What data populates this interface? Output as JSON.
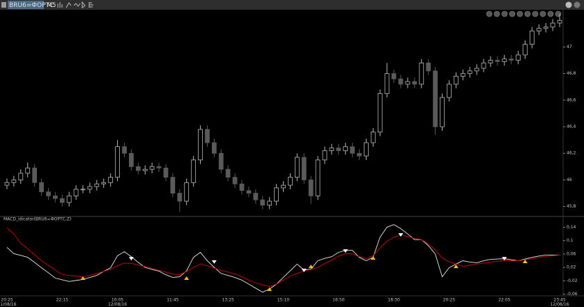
{
  "toolbar": {
    "symbol": "BRU6=ФОРТС",
    "timeframe": "M5"
  },
  "chart_data": [
    {
      "type": "candlestick",
      "up_color": "#b8b8b8",
      "down_color": "#5a5a5a",
      "categories": [
        "20:25",
        null,
        null,
        null,
        null,
        null,
        null,
        null,
        "22:15",
        null,
        null,
        null,
        null,
        null,
        null,
        null,
        "10:05",
        null,
        null,
        null,
        null,
        null,
        null,
        null,
        "11:45",
        null,
        null,
        null,
        null,
        null,
        null,
        null,
        "13:25",
        null,
        null,
        null,
        null,
        null,
        null,
        null,
        "15:10",
        null,
        null,
        null,
        null,
        null,
        null,
        null,
        "16:50",
        null,
        null,
        null,
        null,
        null,
        null,
        null,
        "18:30",
        null,
        null,
        null,
        null,
        null,
        null,
        null,
        "20:25",
        null,
        null,
        null,
        null,
        null,
        null,
        null,
        "22:05",
        null,
        null,
        null,
        null,
        null,
        null,
        null,
        "23:45"
      ],
      "dates": [
        "11/08/16",
        null,
        null,
        null,
        null,
        null,
        null,
        null,
        null,
        null,
        null,
        null,
        null,
        null,
        null,
        null,
        "12/08/16",
        null,
        null,
        null,
        null,
        null,
        null,
        null,
        null,
        null,
        null,
        null,
        null,
        null,
        null,
        null,
        null,
        null,
        null,
        null,
        null,
        null,
        null,
        null,
        null,
        null,
        null,
        null,
        null,
        null,
        null,
        null,
        null,
        null,
        null,
        null,
        null,
        null,
        null,
        null,
        null,
        null,
        null,
        null,
        null,
        null,
        null,
        null,
        null,
        null,
        null,
        null,
        null,
        null,
        null,
        null,
        null,
        null,
        null,
        null,
        null,
        null,
        null,
        null,
        "12/08/16"
      ],
      "open": [
        45.96,
        45.98,
        46.0,
        46.05,
        46.09,
        45.98,
        45.91,
        45.88,
        45.86,
        45.83,
        45.88,
        45.93,
        45.93,
        45.95,
        45.97,
        45.98,
        46.02,
        46.25,
        46.2,
        46.1,
        46.07,
        46.08,
        46.1,
        46.09,
        46.02,
        45.9,
        45.84,
        45.98,
        46.15,
        46.38,
        46.28,
        46.2,
        46.08,
        46.02,
        45.97,
        45.92,
        45.9,
        45.85,
        45.81,
        45.84,
        45.94,
        45.96,
        46.02,
        46.17,
        46.0,
        45.88,
        46.15,
        46.22,
        46.24,
        46.22,
        46.25,
        46.2,
        46.18,
        46.28,
        46.36,
        46.65,
        46.8,
        46.76,
        46.72,
        46.74,
        46.72,
        46.88,
        46.82,
        46.4,
        46.62,
        46.72,
        46.78,
        46.8,
        46.82,
        46.84,
        46.88,
        46.9,
        46.89,
        46.91,
        46.9,
        46.94,
        47.02,
        47.12,
        47.14,
        47.15,
        47.18
      ],
      "high": [
        46.01,
        46.03,
        46.08,
        46.13,
        46.12,
        46.01,
        45.94,
        45.91,
        45.89,
        45.91,
        45.96,
        45.96,
        45.98,
        46.0,
        46.01,
        46.05,
        46.3,
        46.28,
        46.23,
        46.13,
        46.11,
        46.13,
        46.13,
        46.12,
        46.05,
        45.93,
        46.01,
        46.18,
        46.41,
        46.41,
        46.31,
        46.23,
        46.11,
        46.05,
        46.0,
        45.95,
        45.93,
        45.88,
        45.87,
        45.97,
        45.99,
        46.05,
        46.2,
        46.2,
        46.03,
        46.18,
        46.25,
        46.27,
        46.27,
        46.28,
        46.28,
        46.23,
        46.31,
        46.39,
        46.68,
        46.88,
        46.83,
        46.79,
        46.77,
        46.77,
        46.91,
        46.91,
        46.85,
        46.65,
        46.75,
        46.81,
        46.83,
        46.85,
        46.87,
        46.91,
        46.93,
        46.93,
        46.94,
        46.94,
        46.97,
        47.05,
        47.15,
        47.17,
        47.18,
        47.21,
        47.25
      ],
      "low": [
        45.93,
        45.95,
        45.97,
        46.02,
        45.95,
        45.88,
        45.85,
        45.83,
        45.8,
        45.8,
        45.85,
        45.9,
        45.9,
        45.92,
        45.94,
        45.95,
        45.99,
        46.17,
        46.07,
        46.04,
        46.04,
        46.05,
        46.06,
        45.99,
        45.87,
        45.76,
        45.81,
        45.95,
        46.12,
        46.25,
        46.17,
        46.05,
        45.99,
        45.94,
        45.89,
        45.87,
        45.82,
        45.78,
        45.78,
        45.81,
        45.91,
        45.93,
        45.99,
        45.97,
        45.82,
        45.85,
        46.12,
        46.19,
        46.19,
        46.19,
        46.17,
        46.15,
        46.15,
        46.25,
        46.33,
        46.62,
        46.73,
        46.69,
        46.69,
        46.69,
        46.69,
        46.79,
        46.34,
        46.37,
        46.59,
        46.69,
        46.75,
        46.77,
        46.79,
        46.81,
        46.85,
        46.86,
        46.86,
        46.87,
        46.87,
        46.91,
        46.99,
        47.09,
        47.11,
        47.12,
        47.15
      ],
      "close": [
        45.98,
        46.0,
        46.05,
        46.09,
        45.98,
        45.91,
        45.88,
        45.86,
        45.83,
        45.88,
        45.93,
        45.93,
        45.95,
        45.97,
        45.98,
        46.02,
        46.25,
        46.2,
        46.1,
        46.07,
        46.08,
        46.1,
        46.09,
        46.02,
        45.9,
        45.84,
        45.98,
        46.15,
        46.38,
        46.28,
        46.2,
        46.08,
        46.02,
        45.97,
        45.92,
        45.9,
        45.85,
        45.81,
        45.84,
        45.94,
        45.96,
        46.02,
        46.17,
        46.0,
        45.88,
        46.15,
        46.22,
        46.24,
        46.22,
        46.25,
        46.2,
        46.18,
        46.28,
        46.36,
        46.65,
        46.8,
        46.76,
        46.72,
        46.74,
        46.72,
        46.88,
        46.82,
        46.4,
        46.62,
        46.72,
        46.78,
        46.8,
        46.82,
        46.84,
        46.88,
        46.9,
        46.89,
        46.91,
        46.9,
        46.94,
        47.02,
        47.12,
        47.14,
        47.15,
        47.18,
        47.2
      ],
      "ylim": [
        45.73,
        47.28
      ],
      "yticks": [
        {
          "value": 45.8,
          "label": "45,8"
        },
        46,
        {
          "value": 46.2,
          "label": "46,2"
        },
        {
          "value": 46.4,
          "label": "46,4"
        },
        {
          "value": 46.6,
          "label": "46,6"
        },
        {
          "value": 46.8,
          "label": "46,8"
        },
        47
      ]
    },
    {
      "type": "line",
      "title": "MACD_idicator(BRU6=ФОРТС,Z)",
      "series": [
        {
          "color": "#e8e8e8",
          "values": [
            0.08,
            0.061,
            0.056,
            0.05,
            0.035,
            0.019,
            0.004,
            -0.012,
            -0.017,
            -0.022,
            -0.019,
            -0.016,
            -0.01,
            -0.004,
            0.008,
            0.019,
            0.055,
            0.067,
            0.052,
            0.035,
            0.02,
            0.014,
            0.009,
            -0.002,
            -0.01,
            -0.008,
            0.01,
            0.05,
            0.065,
            0.04,
            0.02,
            0.002,
            -0.004,
            -0.01,
            -0.018,
            -0.03,
            -0.042,
            -0.054,
            -0.045,
            -0.03,
            -0.01,
            0.01,
            0.03,
            0.012,
            0.015,
            0.04,
            0.047,
            0.052,
            0.065,
            0.071,
            0.071,
            0.05,
            0.04,
            0.05,
            0.11,
            0.14,
            0.148,
            0.136,
            0.12,
            0.103,
            0.103,
            0.085,
            0.06,
            -0.008,
            0.019,
            0.03,
            0.04,
            0.036,
            0.034,
            0.04,
            0.044,
            0.045,
            0.046,
            0.043,
            0.04,
            0.045,
            0.05,
            0.054,
            0.057,
            0.057,
            0.057
          ]
        },
        {
          "color": "#d40000",
          "values": [
            0.138,
            0.12,
            0.092,
            0.075,
            0.058,
            0.04,
            0.026,
            0.012,
            -0.001,
            -0.004,
            -0.006,
            -0.008,
            -0.004,
            0.002,
            0.008,
            0.015,
            0.025,
            0.033,
            0.032,
            0.027,
            0.023,
            0.017,
            0.011,
            0.006,
            0.0,
            -0.002,
            0.008,
            0.02,
            0.03,
            0.025,
            0.018,
            0.011,
            0.006,
            0.0,
            -0.008,
            -0.018,
            -0.026,
            -0.032,
            -0.037,
            -0.03,
            -0.018,
            -0.006,
            0.002,
            0.01,
            0.014,
            0.02,
            0.032,
            0.042,
            0.054,
            0.061,
            0.06,
            0.052,
            0.046,
            0.055,
            0.078,
            0.098,
            0.11,
            0.117,
            0.112,
            0.107,
            0.103,
            0.09,
            0.072,
            0.048,
            0.036,
            0.03,
            0.023,
            0.027,
            0.03,
            0.033,
            0.036,
            0.038,
            0.04,
            0.04,
            0.04,
            0.043,
            0.046,
            0.05,
            0.053,
            0.055,
            0.057
          ]
        },
        {
          "color": "#f5c400",
          "marker": "triangle-up",
          "values": [
            null,
            null,
            null,
            null,
            null,
            null,
            null,
            null,
            null,
            null,
            null,
            -0.012,
            null,
            null,
            null,
            null,
            null,
            null,
            null,
            null,
            null,
            null,
            null,
            null,
            null,
            null,
            -0.012,
            null,
            null,
            null,
            null,
            null,
            null,
            null,
            null,
            null,
            null,
            null,
            -0.045,
            null,
            null,
            null,
            null,
            null,
            0.023,
            null,
            null,
            null,
            null,
            null,
            null,
            null,
            null,
            0.048,
            null,
            null,
            null,
            null,
            null,
            null,
            null,
            null,
            null,
            null,
            null,
            0.023,
            null,
            null,
            null,
            null,
            null,
            null,
            null,
            null,
            null,
            0.038,
            null,
            null,
            null,
            null,
            null
          ]
        },
        {
          "color": "#ffffff",
          "marker": "triangle-down",
          "values": [
            null,
            null,
            null,
            null,
            null,
            null,
            null,
            null,
            null,
            null,
            null,
            null,
            null,
            null,
            null,
            null,
            null,
            null,
            0.046,
            null,
            null,
            null,
            null,
            null,
            null,
            null,
            null,
            null,
            null,
            null,
            0.036,
            null,
            null,
            null,
            null,
            null,
            null,
            null,
            null,
            null,
            null,
            null,
            null,
            0.011,
            null,
            null,
            null,
            null,
            null,
            0.069,
            null,
            null,
            null,
            null,
            null,
            null,
            null,
            0.117,
            null,
            null,
            null,
            null,
            null,
            null,
            null,
            null,
            null,
            null,
            null,
            null,
            null,
            null,
            0.046,
            null,
            null,
            null,
            null,
            null,
            null,
            null,
            null
          ]
        }
      ],
      "ylim": [
        -0.065,
        0.17
      ],
      "yticks": [
        {
          "value": -0.06,
          "label": "-0,06"
        },
        {
          "value": -0.02,
          "label": "-0,02"
        },
        {
          "value": 0.02,
          "label": "0,02"
        },
        {
          "value": 0.06,
          "label": "0,06"
        },
        {
          "value": 0.1,
          "label": "0,1"
        },
        {
          "value": 0.14,
          "label": "0,14"
        }
      ]
    }
  ]
}
